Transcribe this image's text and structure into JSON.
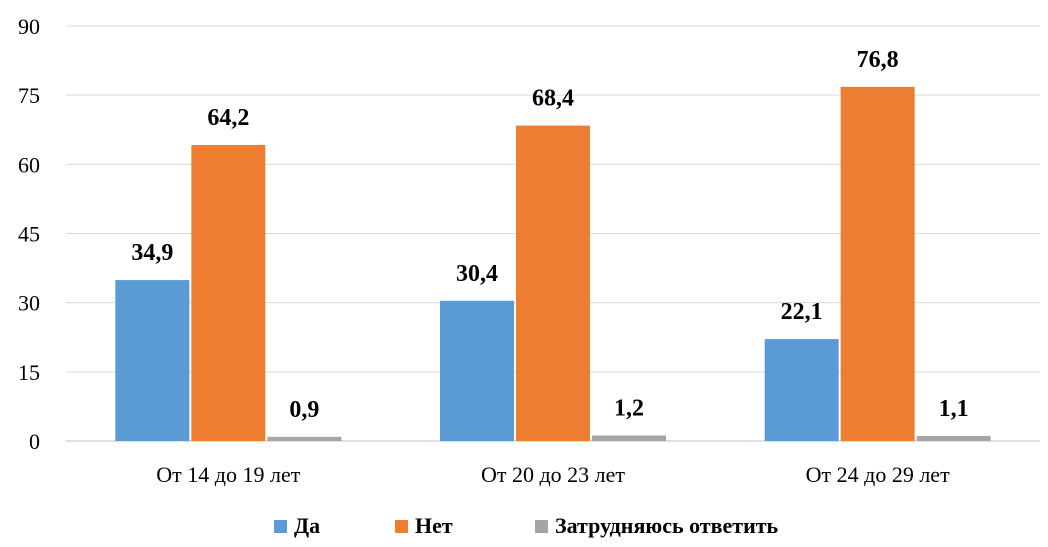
{
  "chart_data": {
    "type": "bar",
    "categories": [
      "От 14 до 19 лет",
      "От 20 до 23 лет",
      "От 24 до 29 лет"
    ],
    "series": [
      {
        "name": "Да",
        "values": [
          34.9,
          30.4,
          22.1
        ],
        "labels": [
          "34,9",
          "30,4",
          "22,1"
        ],
        "color": "#5b9bd5"
      },
      {
        "name": "Нет",
        "values": [
          64.2,
          68.4,
          76.8
        ],
        "labels": [
          "64,2",
          "68,4",
          "76,8"
        ],
        "color": "#ed7d31"
      },
      {
        "name": "Затрудняюсь ответить",
        "values": [
          0.9,
          1.2,
          1.1
        ],
        "labels": [
          "0,9",
          "1,2",
          "1,1"
        ],
        "color": "#a5a5a5"
      }
    ],
    "yticks": [
      "0",
      "15",
      "30",
      "45",
      "60",
      "75",
      "90"
    ],
    "ylim": [
      0,
      90
    ],
    "grid": true,
    "legend_position": "bottom",
    "title": "",
    "xlabel": "",
    "ylabel": ""
  }
}
